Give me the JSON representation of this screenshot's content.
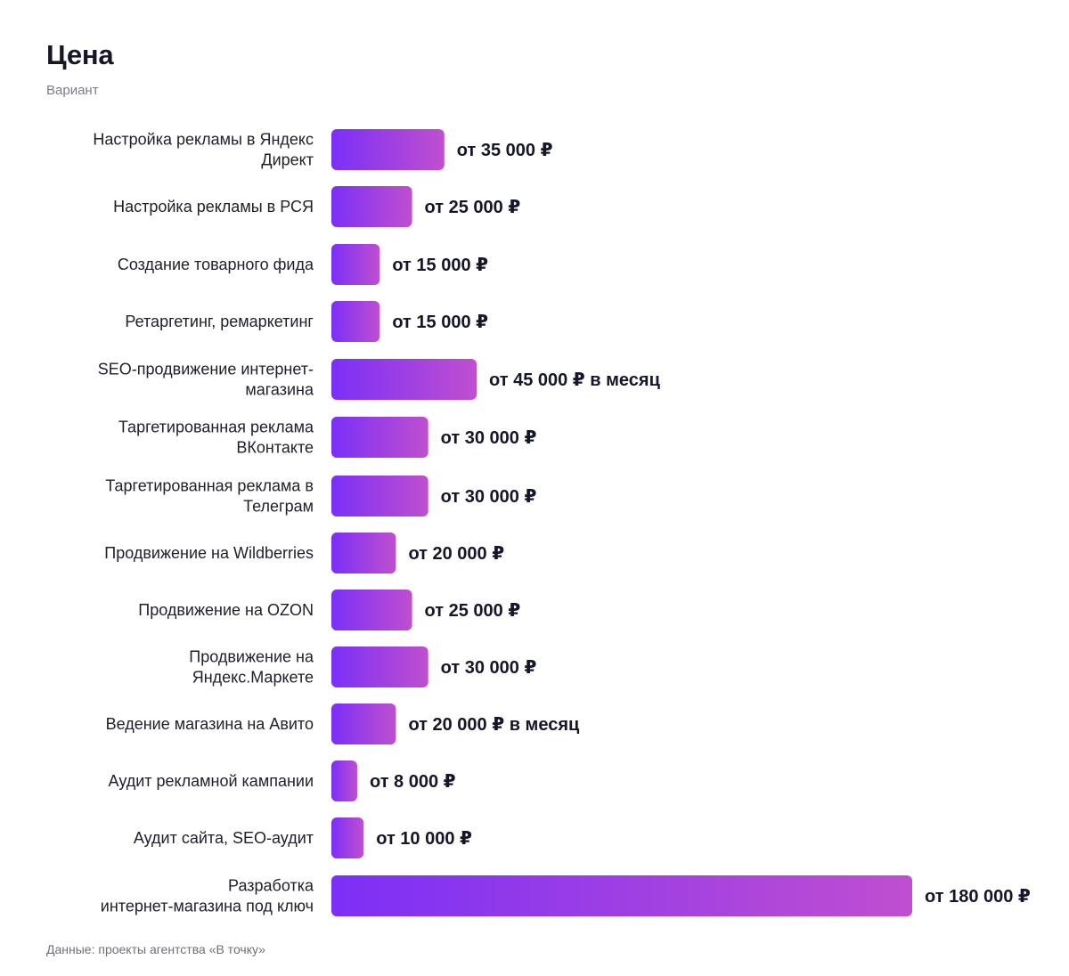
{
  "chart_data": {
    "type": "bar",
    "orientation": "horizontal",
    "title": "Цена",
    "subtitle": "Вариант",
    "source": "Данные: проекты агентства «В точку»",
    "xlim": [
      0,
      180000
    ],
    "grid": false,
    "colors": {
      "bar_start": "#7b2ff7",
      "bar_end": "#c04fd0",
      "text": "#16162a"
    },
    "categories": [
      "Настройка рекламы в Яндекс Директ",
      "Настройка рекламы в РСЯ",
      "Создание товарного фида",
      "Ретаргетинг, ремаркетинг",
      "SEO-продвижение интернет-магазина",
      "Таргетированная реклама ВКонтакте",
      "Таргетированная реклама в Телеграм",
      "Продвижение на Wildberries",
      "Продвижение на OZON",
      "Продвижение на Яндекс.Маркете",
      "Ведение магазина на Авито",
      "Аудит рекламной кампании",
      "Аудит сайта, SEO-аудит",
      "Разработка интернет-магазина под ключ"
    ],
    "values": [
      35000,
      25000,
      15000,
      15000,
      45000,
      30000,
      30000,
      20000,
      25000,
      30000,
      20000,
      8000,
      10000,
      180000
    ],
    "labels": [
      "от 35 000 ₽",
      "от 25 000 ₽",
      "от 15 000 ₽",
      "от 15 000 ₽",
      "от 45 000 ₽ в месяц",
      "от 30 000 ₽",
      "от 30 000 ₽",
      "от 20 000 ₽",
      "от 25 000 ₽",
      "от 30 000 ₽",
      "от 20 000 ₽ в месяц",
      "от 8 000 ₽",
      "от 10 000 ₽",
      "от 180 000 ₽"
    ]
  }
}
